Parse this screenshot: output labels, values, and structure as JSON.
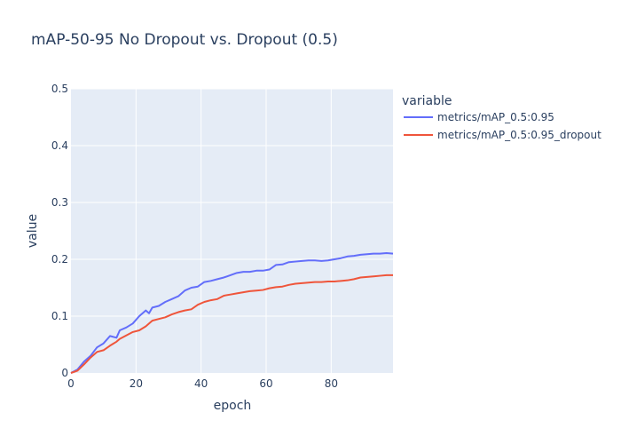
{
  "chart_data": {
    "type": "line",
    "title": "mAP-50-95 No Dropout vs. Dropout (0.5)",
    "xlabel": "epoch",
    "ylabel": "value",
    "xlim": [
      0,
      99
    ],
    "ylim": [
      0,
      0.5
    ],
    "x_ticks": [
      0,
      20,
      40,
      60,
      80
    ],
    "y_ticks": [
      0,
      0.1,
      0.2,
      0.3,
      0.4,
      0.5
    ],
    "y_tick_labels": [
      "0",
      "0.1",
      "0.2",
      "0.3",
      "0.4",
      "0.5"
    ],
    "grid": true,
    "legend": {
      "title": "variable",
      "placement": "right"
    },
    "series": [
      {
        "name": "metrics/mAP_0.5:0.95",
        "color": "#636efa",
        "points": [
          [
            0,
            0.0
          ],
          [
            2,
            0.006
          ],
          [
            4,
            0.02
          ],
          [
            6,
            0.03
          ],
          [
            8,
            0.045
          ],
          [
            10,
            0.052
          ],
          [
            12,
            0.065
          ],
          [
            14,
            0.062
          ],
          [
            15,
            0.075
          ],
          [
            17,
            0.08
          ],
          [
            19,
            0.087
          ],
          [
            21,
            0.1
          ],
          [
            23,
            0.11
          ],
          [
            24,
            0.105
          ],
          [
            25,
            0.115
          ],
          [
            27,
            0.118
          ],
          [
            29,
            0.125
          ],
          [
            31,
            0.13
          ],
          [
            33,
            0.135
          ],
          [
            35,
            0.145
          ],
          [
            37,
            0.15
          ],
          [
            39,
            0.152
          ],
          [
            41,
            0.16
          ],
          [
            43,
            0.162
          ],
          [
            45,
            0.165
          ],
          [
            47,
            0.168
          ],
          [
            49,
            0.172
          ],
          [
            51,
            0.176
          ],
          [
            53,
            0.178
          ],
          [
            55,
            0.178
          ],
          [
            57,
            0.18
          ],
          [
            59,
            0.18
          ],
          [
            61,
            0.182
          ],
          [
            63,
            0.19
          ],
          [
            65,
            0.191
          ],
          [
            67,
            0.195
          ],
          [
            69,
            0.196
          ],
          [
            71,
            0.197
          ],
          [
            73,
            0.198
          ],
          [
            75,
            0.198
          ],
          [
            77,
            0.197
          ],
          [
            79,
            0.198
          ],
          [
            81,
            0.2
          ],
          [
            83,
            0.202
          ],
          [
            85,
            0.205
          ],
          [
            87,
            0.206
          ],
          [
            89,
            0.208
          ],
          [
            91,
            0.209
          ],
          [
            93,
            0.21
          ],
          [
            95,
            0.21
          ],
          [
            97,
            0.211
          ],
          [
            99,
            0.21
          ]
        ]
      },
      {
        "name": "metrics/mAP_0.5:0.95_dropout",
        "color": "#ef553b",
        "points": [
          [
            0,
            0.0
          ],
          [
            2,
            0.004
          ],
          [
            4,
            0.015
          ],
          [
            6,
            0.027
          ],
          [
            8,
            0.037
          ],
          [
            10,
            0.04
          ],
          [
            12,
            0.048
          ],
          [
            14,
            0.055
          ],
          [
            15,
            0.06
          ],
          [
            17,
            0.066
          ],
          [
            19,
            0.072
          ],
          [
            21,
            0.075
          ],
          [
            23,
            0.082
          ],
          [
            25,
            0.092
          ],
          [
            27,
            0.095
          ],
          [
            29,
            0.098
          ],
          [
            31,
            0.103
          ],
          [
            33,
            0.107
          ],
          [
            35,
            0.11
          ],
          [
            37,
            0.112
          ],
          [
            39,
            0.12
          ],
          [
            41,
            0.125
          ],
          [
            43,
            0.128
          ],
          [
            45,
            0.13
          ],
          [
            47,
            0.136
          ],
          [
            49,
            0.138
          ],
          [
            51,
            0.14
          ],
          [
            53,
            0.142
          ],
          [
            55,
            0.144
          ],
          [
            57,
            0.145
          ],
          [
            59,
            0.146
          ],
          [
            61,
            0.149
          ],
          [
            63,
            0.151
          ],
          [
            65,
            0.152
          ],
          [
            67,
            0.155
          ],
          [
            69,
            0.157
          ],
          [
            71,
            0.158
          ],
          [
            73,
            0.159
          ],
          [
            75,
            0.16
          ],
          [
            77,
            0.16
          ],
          [
            79,
            0.161
          ],
          [
            81,
            0.161
          ],
          [
            83,
            0.162
          ],
          [
            85,
            0.163
          ],
          [
            87,
            0.165
          ],
          [
            89,
            0.168
          ],
          [
            91,
            0.169
          ],
          [
            93,
            0.17
          ],
          [
            95,
            0.171
          ],
          [
            97,
            0.172
          ],
          [
            99,
            0.172
          ]
        ]
      }
    ]
  }
}
